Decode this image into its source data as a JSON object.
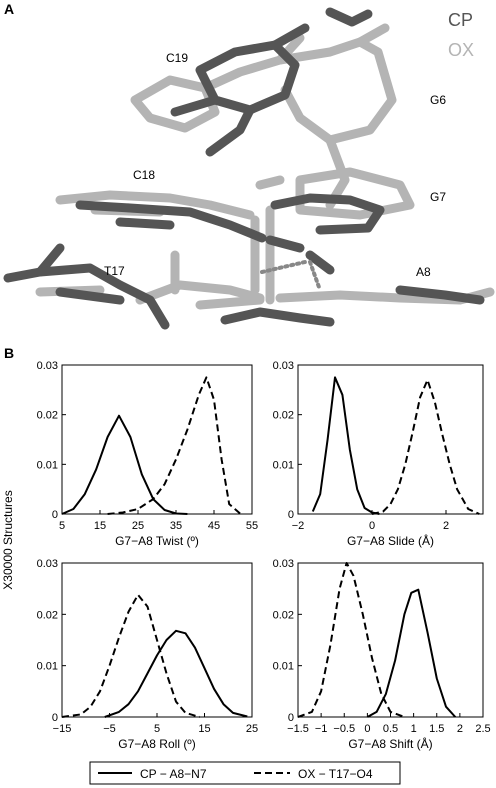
{
  "panel_a": {
    "label": "A",
    "legend": [
      {
        "text": "CP",
        "color": "#555555"
      },
      {
        "text": "OX",
        "color": "#b4b4b4"
      }
    ],
    "residue_labels": [
      "C19",
      "G6",
      "C18",
      "G7",
      "T17",
      "A8"
    ]
  },
  "panel_b": {
    "label": "B",
    "y_axis_label": "X30000 Structures"
  },
  "legend": {
    "items": [
      {
        "text": "CP − A8−N7",
        "style": "solid"
      },
      {
        "text": "OX − T17−O4",
        "style": "dashed"
      }
    ]
  },
  "chart_data": [
    {
      "type": "line",
      "xlabel": "G7−A8 Twist (º)",
      "xlim": [
        5,
        55
      ],
      "ylim": [
        0,
        0.03
      ],
      "xticks": [
        5,
        15,
        25,
        35,
        45,
        55
      ],
      "yticks": [
        0,
        0.01,
        0.02,
        0.03
      ],
      "series": [
        {
          "name": "CP − A8−N7",
          "style": "solid",
          "x": [
            5,
            8,
            11,
            14,
            17,
            20,
            23,
            26,
            29,
            32,
            35,
            38
          ],
          "y": [
            0.0,
            0.001,
            0.004,
            0.009,
            0.0155,
            0.0198,
            0.0155,
            0.008,
            0.003,
            0.0008,
            0.0001,
            0.0
          ]
        },
        {
          "name": "OX − T17−O4",
          "style": "dashed",
          "x": [
            17,
            21,
            25,
            29,
            32,
            35,
            38,
            41,
            43,
            45,
            47,
            49,
            52
          ],
          "y": [
            0.0,
            0.0003,
            0.001,
            0.003,
            0.006,
            0.011,
            0.017,
            0.024,
            0.0275,
            0.023,
            0.011,
            0.002,
            0.0
          ]
        }
      ]
    },
    {
      "type": "line",
      "xlabel": "G7−A8 Slide (Å)",
      "xlim": [
        -2,
        3
      ],
      "ylim": [
        0,
        0.03
      ],
      "xticks": [
        -2,
        0,
        2
      ],
      "yticks": [
        0,
        0.01,
        0.02,
        0.03
      ],
      "series": [
        {
          "name": "CP − A8−N7",
          "style": "solid",
          "x": [
            -1.6,
            -1.4,
            -1.2,
            -1.0,
            -0.8,
            -0.6,
            -0.4,
            -0.2,
            0.0,
            0.2
          ],
          "y": [
            0.0005,
            0.004,
            0.015,
            0.0275,
            0.024,
            0.013,
            0.005,
            0.0012,
            0.0003,
            0.0
          ]
        },
        {
          "name": "OX − T17−O4",
          "style": "dashed",
          "x": [
            0.0,
            0.3,
            0.5,
            0.7,
            0.9,
            1.1,
            1.3,
            1.5,
            1.7,
            1.9,
            2.1,
            2.3,
            2.6,
            2.9
          ],
          "y": [
            0.0,
            0.0005,
            0.002,
            0.005,
            0.01,
            0.0165,
            0.0235,
            0.027,
            0.0225,
            0.016,
            0.01,
            0.005,
            0.001,
            0.0
          ]
        }
      ]
    },
    {
      "type": "line",
      "xlabel": "G7−A8 Roll (º)",
      "xlim": [
        -15,
        25
      ],
      "ylim": [
        0,
        0.03
      ],
      "xticks": [
        -15,
        -5,
        5,
        15,
        25
      ],
      "yticks": [
        0,
        0.01,
        0.02,
        0.03
      ],
      "series": [
        {
          "name": "CP − A8−N7",
          "style": "solid",
          "x": [
            -6,
            -3,
            -1,
            1,
            3,
            5,
            7,
            9,
            11,
            13,
            15,
            17,
            19,
            21,
            24
          ],
          "y": [
            0.0,
            0.001,
            0.0025,
            0.005,
            0.0085,
            0.012,
            0.015,
            0.0168,
            0.0163,
            0.0135,
            0.0095,
            0.0055,
            0.0025,
            0.0008,
            0.0001
          ]
        },
        {
          "name": "OX − T17−O4",
          "style": "dashed",
          "x": [
            -15,
            -11,
            -9,
            -7,
            -5,
            -3,
            -1,
            1,
            3,
            5,
            7,
            9,
            11,
            14
          ],
          "y": [
            0.0,
            0.0005,
            0.002,
            0.005,
            0.01,
            0.0155,
            0.0205,
            0.0238,
            0.0215,
            0.015,
            0.0085,
            0.003,
            0.0008,
            0.0
          ]
        }
      ]
    },
    {
      "type": "line",
      "xlabel": "G7−A8 Shift (Å)",
      "xlim": [
        -1.5,
        2.5
      ],
      "ylim": [
        0,
        0.03
      ],
      "xticks": [
        -1.5,
        -1,
        -0.5,
        0,
        0.5,
        1,
        1.5,
        2,
        2.5
      ],
      "yticks": [
        0,
        0.01,
        0.02,
        0.03
      ],
      "series": [
        {
          "name": "CP − A8−N7",
          "style": "solid",
          "x": [
            0.0,
            0.2,
            0.4,
            0.6,
            0.8,
            0.95,
            1.1,
            1.3,
            1.5,
            1.7,
            1.9
          ],
          "y": [
            0.0,
            0.001,
            0.0045,
            0.011,
            0.02,
            0.0242,
            0.0248,
            0.0165,
            0.0075,
            0.002,
            0.0
          ]
        },
        {
          "name": "OX − T17−O4",
          "style": "dashed",
          "x": [
            -1.5,
            -1.2,
            -1.0,
            -0.8,
            -0.6,
            -0.45,
            -0.3,
            -0.1,
            0.1,
            0.3,
            0.5,
            0.8
          ],
          "y": [
            0.0,
            0.001,
            0.005,
            0.014,
            0.025,
            0.03,
            0.0275,
            0.02,
            0.0115,
            0.0045,
            0.001,
            0.0
          ]
        }
      ]
    }
  ]
}
